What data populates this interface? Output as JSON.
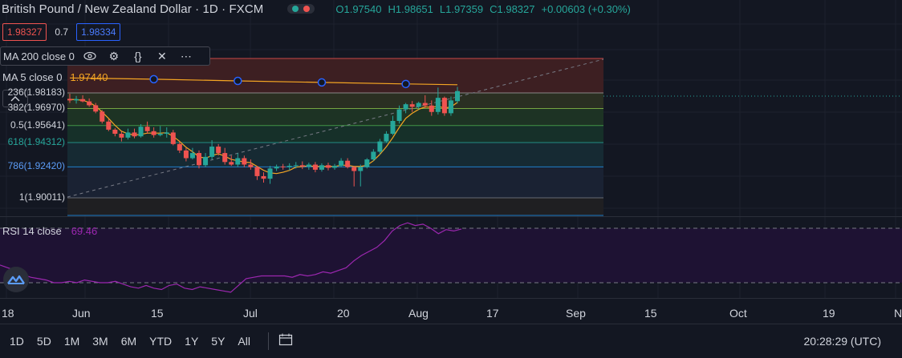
{
  "header": {
    "symbol_title": "British Pound / New Zealand Dollar · 1D · FXCM",
    "ohlc": {
      "open": "O1.97540",
      "high": "H1.98651",
      "low": "L1.97359",
      "close": "C1.98327",
      "change": "+0.00603 (+0.30%)"
    }
  },
  "prices": {
    "bid": "1.98327",
    "spread": "0.7",
    "ask": "1.98334"
  },
  "indicators": {
    "ma200": {
      "label": "MA 200 close 0"
    },
    "ma5": {
      "label": "MA 5 close 0",
      "value": "1.97440"
    },
    "rsi": {
      "label": "RSI 14 close",
      "value": "69.46"
    }
  },
  "fib_levels": [
    {
      "label": "236(1.98183)",
      "color": "#d1d4dc"
    },
    {
      "label": "382(1.96970)",
      "color": "#d1d4dc"
    },
    {
      "label": "0.5(1.95641)",
      "color": "#d1d4dc"
    },
    {
      "label": "618(1.94312)",
      "color": "#26a69a"
    },
    {
      "label": "786(1.92420)",
      "color": "#5b9cf6"
    },
    {
      "label": "1(1.90011)",
      "color": "#d1d4dc"
    }
  ],
  "time_axis": {
    "labels": [
      "18",
      "Jun",
      "15",
      "Jul",
      "20",
      "Aug",
      "17",
      "Sep",
      "15",
      "Oct",
      "19",
      "N"
    ]
  },
  "bottom_bar": {
    "ranges": [
      "1D",
      "5D",
      "1M",
      "3M",
      "6M",
      "YTD",
      "1Y",
      "5Y",
      "All"
    ],
    "clock": "20:28:29 (UTC)"
  },
  "colors": {
    "background": "#131722",
    "up": "#26a69a",
    "down": "#ef5350",
    "ma5": "#f5a623",
    "rsi": "#9c27b0"
  },
  "chart_data": {
    "type": "candlestick",
    "series": [
      {
        "name": "GBPNZD",
        "ohlc": [
          [
            1.9772,
            1.9812,
            1.974,
            1.976
          ],
          [
            1.976,
            1.9795,
            1.9735,
            1.977
          ],
          [
            1.977,
            1.98,
            1.9745,
            1.9752
          ],
          [
            1.9752,
            1.9775,
            1.971,
            1.9722
          ],
          [
            1.9722,
            1.974,
            1.966,
            1.9673
          ],
          [
            1.9673,
            1.9685,
            1.958,
            1.9595
          ],
          [
            1.9595,
            1.9615,
            1.952,
            1.9532
          ],
          [
            1.9532,
            1.9545,
            1.948,
            1.95
          ],
          [
            1.95,
            1.952,
            1.944,
            1.947
          ],
          [
            1.947,
            1.954,
            1.9455,
            1.951
          ],
          [
            1.951,
            1.954,
            1.9465,
            1.948
          ],
          [
            1.948,
            1.9575,
            1.947,
            1.9555
          ],
          [
            1.9555,
            1.9595,
            1.95,
            1.952
          ],
          [
            1.952,
            1.955,
            1.947,
            1.949
          ],
          [
            1.949,
            1.956,
            1.948,
            1.95
          ],
          [
            1.95,
            1.955,
            1.947,
            1.951
          ],
          [
            1.951,
            1.953,
            1.941,
            1.942
          ],
          [
            1.942,
            1.944,
            1.935,
            1.937
          ],
          [
            1.937,
            1.939,
            1.9285,
            1.931
          ],
          [
            1.931,
            1.939,
            1.93,
            1.935
          ],
          [
            1.935,
            1.937,
            1.923,
            1.9255
          ],
          [
            1.9255,
            1.935,
            1.924,
            1.932
          ],
          [
            1.932,
            1.945,
            1.93,
            1.94
          ],
          [
            1.94,
            1.942,
            1.933,
            1.935
          ],
          [
            1.935,
            1.939,
            1.926,
            1.928
          ],
          [
            1.928,
            1.933,
            1.925,
            1.926
          ],
          [
            1.926,
            1.935,
            1.924,
            1.931
          ],
          [
            1.931,
            1.933,
            1.924,
            1.926
          ],
          [
            1.926,
            1.93,
            1.922,
            1.924
          ],
          [
            1.924,
            1.925,
            1.914,
            1.917
          ],
          [
            1.917,
            1.92,
            1.912,
            1.915
          ],
          [
            1.915,
            1.925,
            1.911,
            1.923
          ],
          [
            1.923,
            1.926,
            1.921,
            1.9245
          ],
          [
            1.9245,
            1.9265,
            1.922,
            1.924
          ],
          [
            1.924,
            1.927,
            1.9215,
            1.925
          ],
          [
            1.925,
            1.928,
            1.923,
            1.9255
          ],
          [
            1.9255,
            1.9285,
            1.9225,
            1.9245
          ],
          [
            1.9245,
            1.9275,
            1.922,
            1.926
          ],
          [
            1.926,
            1.928,
            1.92,
            1.922
          ],
          [
            1.922,
            1.927,
            1.9205,
            1.9255
          ],
          [
            1.9255,
            1.9275,
            1.9215,
            1.9235
          ],
          [
            1.9235,
            1.9265,
            1.922,
            1.925
          ],
          [
            1.925,
            1.931,
            1.924,
            1.929
          ],
          [
            1.929,
            1.931,
            1.923,
            1.924
          ],
          [
            1.924,
            1.925,
            1.909,
            1.921
          ],
          [
            1.921,
            1.926,
            1.909,
            1.924
          ],
          [
            1.924,
            1.931,
            1.923,
            1.93
          ],
          [
            1.93,
            1.938,
            1.929,
            1.936
          ],
          [
            1.936,
            1.946,
            1.934,
            1.944
          ],
          [
            1.944,
            1.952,
            1.943,
            1.95
          ],
          [
            1.95,
            1.964,
            1.949,
            1.96
          ],
          [
            1.96,
            1.972,
            1.958,
            1.969
          ],
          [
            1.969,
            1.974,
            1.966,
            1.973
          ],
          [
            1.973,
            1.9755,
            1.967,
            1.971
          ],
          [
            1.971,
            1.975,
            1.969,
            1.974
          ],
          [
            1.974,
            1.98,
            1.97,
            1.972
          ],
          [
            1.972,
            1.976,
            1.964,
            1.967
          ],
          [
            1.967,
            1.986,
            1.965,
            1.978
          ],
          [
            1.978,
            1.979,
            1.964,
            1.966
          ],
          [
            1.966,
            1.979,
            1.964,
            1.976
          ],
          [
            1.9754,
            1.98651,
            1.97359,
            1.98327
          ]
        ]
      },
      {
        "name": "MA 5",
        "values": [
          1.9768,
          1.9766,
          1.976,
          1.9745,
          1.9715,
          1.967,
          1.962,
          1.9565,
          1.952,
          1.95,
          1.949,
          1.9495,
          1.9505,
          1.9505,
          1.9505,
          1.9508,
          1.948,
          1.944,
          1.9395,
          1.936,
          1.932,
          1.931,
          1.933,
          1.9345,
          1.9325,
          1.93,
          1.929,
          1.928,
          1.9275,
          1.9245,
          1.9215,
          1.9195,
          1.919,
          1.92,
          1.9215,
          1.924,
          1.9245,
          1.925,
          1.9245,
          1.9245,
          1.9245,
          1.9245,
          1.9255,
          1.9255,
          1.9245,
          1.9245,
          1.9255,
          1.929,
          1.934,
          1.94,
          1.947,
          1.955,
          1.962,
          1.966,
          1.969,
          1.971,
          1.9705,
          1.9715,
          1.97,
          1.971,
          1.9744
        ]
      },
      {
        "name": "MA 200",
        "x_index": [
          13,
          26,
          39,
          52,
          60
        ],
        "values": [
          1.9925,
          1.9912,
          1.99,
          1.9888,
          1.9882
        ]
      },
      {
        "name": "RSI 14",
        "values": [
          43,
          41,
          39,
          36,
          34,
          33,
          32,
          30,
          30,
          31,
          30,
          32,
          31,
          30,
          30,
          31,
          29,
          27,
          26,
          28,
          26,
          25,
          28,
          29,
          26,
          25,
          27,
          26,
          25,
          24,
          23,
          28,
          33,
          34,
          35,
          35,
          35,
          35,
          34,
          36,
          35,
          36,
          38,
          37,
          39,
          41,
          46,
          50,
          53,
          56,
          61,
          68,
          72,
          74,
          72,
          73,
          70,
          66,
          69,
          68,
          69.46
        ]
      }
    ],
    "fib_retracement": [
      1.98183,
      1.9697,
      1.95641,
      1.94312,
      1.9242,
      1.90011
    ],
    "rsi_bands": [
      70,
      30
    ],
    "grid": true
  }
}
